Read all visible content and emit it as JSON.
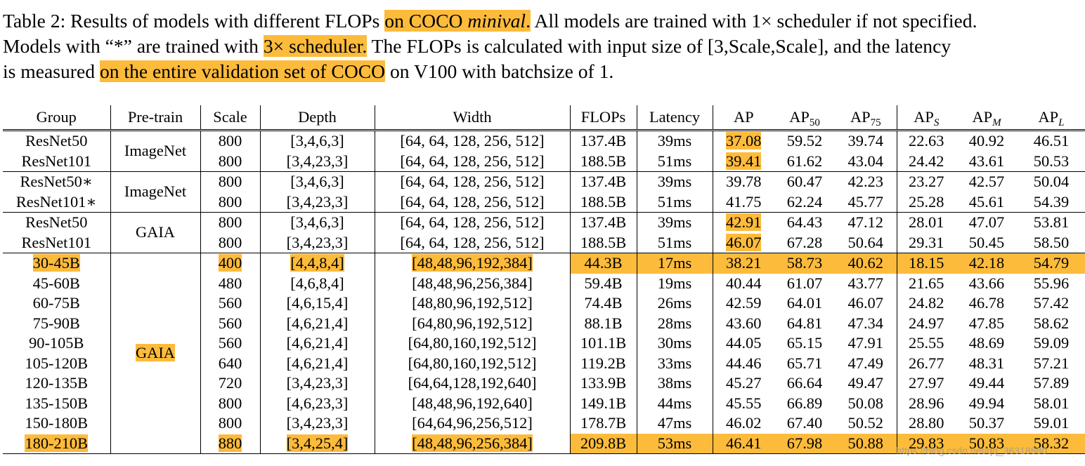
{
  "caption": {
    "line1_a": "Table 2: Results of models with different FLOPs ",
    "line1_hl1": "on COCO ",
    "line1_hl1_italic": "minival",
    "line1_hl1_end": ".",
    "line1_b": " All models are trained with 1× scheduler if not specified.",
    "line2_a": "Models with “*” are trained with ",
    "line2_hl": "3× scheduler.",
    "line2_b": " The FLOPs is calculated with input size of [3,Scale,Scale], and the latency",
    "line3_a": "is measured ",
    "line3_hl": "on the entire validation set of COCO",
    "line3_b": " on V100 with batchsize of 1."
  },
  "headers": {
    "group": "Group",
    "pretrain": "Pre-train",
    "scale": "Scale",
    "depth": "Depth",
    "width": "Width",
    "flops": "FLOPs",
    "latency": "Latency",
    "ap": "AP",
    "ap50": "AP",
    "ap50_sub": "50",
    "ap75": "AP",
    "ap75_sub": "75",
    "aps": "AP",
    "aps_sub": "S",
    "apm": "AP",
    "apm_sub": "M",
    "apl": "AP",
    "apl_sub": "L"
  },
  "blocks": [
    {
      "pretrain": "ImageNet",
      "pretrain_highlight": false,
      "rows": [
        {
          "group": "ResNet50",
          "scale": "800",
          "depth": "[3,4,6,3]",
          "width": "[64, 64, 128, 256, 512]",
          "flops": "137.4B",
          "latency": "39ms",
          "ap": "37.08",
          "ap50": "59.52",
          "ap75": "39.74",
          "aps": "22.63",
          "apm": "40.92",
          "apl": "46.51",
          "hl_ap": true
        },
        {
          "group": "ResNet101",
          "scale": "800",
          "depth": "[3,4,23,3]",
          "width": "[64, 64, 128, 256, 512]",
          "flops": "188.5B",
          "latency": "51ms",
          "ap": "39.41",
          "ap50": "61.62",
          "ap75": "43.04",
          "aps": "24.42",
          "apm": "43.61",
          "apl": "50.53",
          "hl_ap": true
        }
      ]
    },
    {
      "pretrain": "ImageNet",
      "pretrain_highlight": false,
      "rows": [
        {
          "group": "ResNet50∗",
          "scale": "800",
          "depth": "[3,4,6,3]",
          "width": "[64, 64, 128, 256, 512]",
          "flops": "137.4B",
          "latency": "39ms",
          "ap": "39.78",
          "ap50": "60.47",
          "ap75": "42.23",
          "aps": "23.27",
          "apm": "42.57",
          "apl": "50.04"
        },
        {
          "group": "ResNet101∗",
          "scale": "800",
          "depth": "[3,4,23,3]",
          "width": "[64, 64, 128, 256, 512]",
          "flops": "188.5B",
          "latency": "51ms",
          "ap": "41.75",
          "ap50": "62.24",
          "ap75": "45.77",
          "aps": "25.28",
          "apm": "45.61",
          "apl": "54.39"
        }
      ]
    },
    {
      "pretrain": "GAIA",
      "pretrain_highlight": false,
      "rows": [
        {
          "group": "ResNet50",
          "scale": "800",
          "depth": "[3,4,6,3]",
          "width": "[64, 64, 128, 256, 512]",
          "flops": "137.4B",
          "latency": "39ms",
          "ap": "42.91",
          "ap50": "64.43",
          "ap75": "47.12",
          "aps": "28.01",
          "apm": "47.07",
          "apl": "53.81",
          "hl_ap": true
        },
        {
          "group": "ResNet101",
          "scale": "800",
          "depth": "[3,4,23,3]",
          "width": "[64, 64, 128, 256, 512]",
          "flops": "188.5B",
          "latency": "51ms",
          "ap": "46.07",
          "ap50": "67.28",
          "ap75": "50.64",
          "aps": "29.31",
          "apm": "50.45",
          "apl": "58.50",
          "hl_ap": true
        }
      ]
    },
    {
      "pretrain": "GAIA",
      "pretrain_highlight": true,
      "rows": [
        {
          "group": "30-45B",
          "scale": "400",
          "depth": "[4,4,8,4]",
          "width": "[48,48,96,192,384]",
          "flops": "44.3B",
          "latency": "17ms",
          "ap": "38.21",
          "ap50": "58.73",
          "ap75": "40.62",
          "aps": "18.15",
          "apm": "42.18",
          "apl": "54.79",
          "hl_row": true
        },
        {
          "group": "45-60B",
          "scale": "480",
          "depth": "[4,6,8,4]",
          "width": "[48,48,96,256,384]",
          "flops": "59.4B",
          "latency": "19ms",
          "ap": "40.44",
          "ap50": "61.07",
          "ap75": "43.77",
          "aps": "21.65",
          "apm": "43.66",
          "apl": "55.96"
        },
        {
          "group": "60-75B",
          "scale": "560",
          "depth": "[4,6,15,4]",
          "width": "[48,80,96,192,512]",
          "flops": "74.4B",
          "latency": "26ms",
          "ap": "42.59",
          "ap50": "64.01",
          "ap75": "46.07",
          "aps": "24.82",
          "apm": "46.78",
          "apl": "57.42"
        },
        {
          "group": "75-90B",
          "scale": "560",
          "depth": "[4,6,21,4]",
          "width": "[64,80,96,192,512]",
          "flops": "88.1B",
          "latency": "28ms",
          "ap": "43.60",
          "ap50": "64.81",
          "ap75": "47.34",
          "aps": "24.97",
          "apm": "47.85",
          "apl": "58.62"
        },
        {
          "group": "90-105B",
          "scale": "560",
          "depth": "[4,6,21,4]",
          "width": "[64,80,160,192,512]",
          "flops": "101.1B",
          "latency": "30ms",
          "ap": "44.05",
          "ap50": "65.15",
          "ap75": "47.91",
          "aps": "25.55",
          "apm": "48.69",
          "apl": "59.09"
        },
        {
          "group": "105-120B",
          "scale": "640",
          "depth": "[4,6,21,4]",
          "width": "[64,80,160,192,512]",
          "flops": "119.2B",
          "latency": "33ms",
          "ap": "44.46",
          "ap50": "65.71",
          "ap75": "47.49",
          "aps": "26.77",
          "apm": "48.31",
          "apl": "57.21"
        },
        {
          "group": "120-135B",
          "scale": "720",
          "depth": "[3,4,23,3]",
          "width": "[64,64,128,192,640]",
          "flops": "133.9B",
          "latency": "38ms",
          "ap": "45.27",
          "ap50": "66.64",
          "ap75": "49.47",
          "aps": "27.97",
          "apm": "49.44",
          "apl": "57.89"
        },
        {
          "group": "135-150B",
          "scale": "800",
          "depth": "[4,6,23,3]",
          "width": "[48,48,96,192,640]",
          "flops": "149.1B",
          "latency": "44ms",
          "ap": "45.55",
          "ap50": "66.89",
          "ap75": "50.08",
          "aps": "28.96",
          "apm": "49.94",
          "apl": "58.01"
        },
        {
          "group": "150-180B",
          "scale": "800",
          "depth": "[3,4,23,3]",
          "width": "[64,64,96,256,512]",
          "flops": "178.7B",
          "latency": "47ms",
          "ap": "46.02",
          "ap50": "67.40",
          "ap75": "50.52",
          "aps": "28.80",
          "apm": "50.37",
          "apl": "59.01"
        },
        {
          "group": "180-210B",
          "scale": "880",
          "depth": "[3,4,25,4]",
          "width": "[48,48,96,256,384]",
          "flops": "209.8B",
          "latency": "53ms",
          "ap": "46.41",
          "ap50": "67.98",
          "ap75": "50.88",
          "aps": "29.83",
          "apm": "50.83",
          "apl": "58.32",
          "hl_row": true
        }
      ]
    }
  ],
  "watermark": "https://blog.csdn.net/qq_36318880",
  "colors": {
    "highlight": "#fdbb3c"
  }
}
